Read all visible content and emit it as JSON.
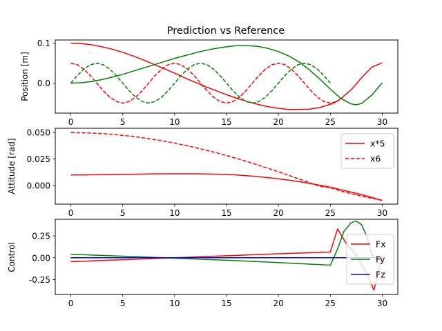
{
  "chart_data": [
    {
      "type": "line",
      "title": "Prediction vs Reference",
      "ylabel": "Position [m]",
      "xlabel": "",
      "xlim": [
        -1.5,
        31.5
      ],
      "ylim": [
        -0.075,
        0.108
      ],
      "xticks": [
        "0",
        "5",
        "10",
        "15",
        "20",
        "25",
        "30"
      ],
      "yticks": [
        "0.1",
        "0.0"
      ],
      "legend": null,
      "series": [
        {
          "color": "#ff0000",
          "dash": "solid",
          "x": [
            0,
            1,
            2,
            3,
            4,
            5,
            6,
            7,
            8,
            9,
            10,
            11,
            12,
            13,
            14,
            15,
            16,
            17,
            18,
            19,
            20,
            21,
            22,
            23,
            24,
            25,
            25.5,
            26,
            27,
            28,
            29,
            30
          ],
          "values": [
            0.1,
            0.099,
            0.096,
            0.091,
            0.085,
            0.077,
            0.068,
            0.058,
            0.047,
            0.036,
            0.025,
            0.013,
            0.002,
            -0.009,
            -0.019,
            -0.029,
            -0.038,
            -0.046,
            -0.053,
            -0.059,
            -0.063,
            -0.066,
            -0.066,
            -0.065,
            -0.061,
            -0.053,
            -0.048,
            -0.039,
            -0.017,
            0.013,
            0.04,
            0.051
          ]
        },
        {
          "color": "#ff0000",
          "dash": "dashed",
          "x": [
            0,
            0.625,
            1.25,
            1.875,
            2.5,
            3.125,
            3.75,
            4.375,
            5,
            5.625,
            6.25,
            6.875,
            7.5,
            8.125,
            8.75,
            9.375,
            10,
            10.625,
            11.25,
            11.875,
            12.5,
            13.125,
            13.75,
            14.375,
            15,
            15.625,
            16.25,
            16.875,
            17.5,
            18.125,
            18.75,
            19.375,
            20,
            20.625,
            21.25,
            21.875,
            22.5,
            23.125,
            23.75,
            24.375,
            25,
            25.625,
            26.25
          ],
          "values": [
            0.05,
            0.046,
            0.035,
            0.019,
            0.0,
            -0.019,
            -0.035,
            -0.046,
            -0.05,
            -0.046,
            -0.035,
            -0.019,
            0.0,
            0.019,
            0.035,
            0.046,
            0.05,
            0.046,
            0.035,
            0.019,
            0.0,
            -0.019,
            -0.035,
            -0.046,
            -0.05,
            -0.046,
            -0.035,
            -0.019,
            0.0,
            0.019,
            0.035,
            0.046,
            0.05,
            0.046,
            0.035,
            0.019,
            0.0,
            -0.019,
            -0.035,
            -0.046,
            -0.05,
            -0.046,
            -0.035
          ]
        },
        {
          "color": "#008000",
          "dash": "solid",
          "x": [
            0,
            1,
            2,
            3,
            4,
            5,
            6,
            7,
            8,
            9,
            10,
            11,
            12,
            13,
            14,
            15,
            16,
            16.5,
            17,
            18,
            19,
            20,
            21,
            22,
            23,
            24,
            25,
            26,
            27,
            27.5,
            28,
            29,
            30
          ],
          "values": [
            0.0,
            0.001,
            0.004,
            0.009,
            0.015,
            0.022,
            0.03,
            0.038,
            0.046,
            0.054,
            0.062,
            0.069,
            0.076,
            0.082,
            0.087,
            0.091,
            0.094,
            0.094,
            0.094,
            0.092,
            0.087,
            0.079,
            0.068,
            0.053,
            0.033,
            0.01,
            -0.015,
            -0.038,
            -0.052,
            -0.054,
            -0.051,
            -0.03,
            0.001
          ]
        },
        {
          "color": "#008000",
          "dash": "dashed",
          "x": [
            0,
            0.625,
            1.25,
            1.875,
            2.5,
            3.125,
            3.75,
            4.375,
            5,
            5.625,
            6.25,
            6.875,
            7.5,
            8.125,
            8.75,
            9.375,
            10,
            10.625,
            11.25,
            11.875,
            12.5,
            13.125,
            13.75,
            14.375,
            15,
            15.625,
            16.25,
            16.875,
            17.5,
            18.125,
            18.75,
            19.375,
            20,
            20.625,
            21.25,
            21.875,
            22.5,
            23.125,
            23.75,
            24.375,
            25
          ],
          "values": [
            0.0,
            0.019,
            0.035,
            0.046,
            0.05,
            0.046,
            0.035,
            0.019,
            0.0,
            -0.019,
            -0.035,
            -0.046,
            -0.05,
            -0.046,
            -0.035,
            -0.019,
            0.0,
            0.019,
            0.035,
            0.046,
            0.05,
            0.046,
            0.035,
            0.019,
            0.0,
            -0.019,
            -0.035,
            -0.046,
            -0.05,
            -0.046,
            -0.035,
            -0.019,
            0.0,
            0.019,
            0.035,
            0.046,
            0.05,
            0.046,
            0.035,
            0.019,
            0.0
          ]
        }
      ]
    },
    {
      "type": "line",
      "title": "",
      "ylabel": "Attitude [rad]",
      "xlabel": "",
      "xlim": [
        -1.5,
        31.5
      ],
      "ylim": [
        -0.0175,
        0.054
      ],
      "xticks": [
        "0",
        "5",
        "10",
        "15",
        "20",
        "25",
        "30"
      ],
      "yticks": [
        "0.050",
        "0.025",
        "0.000"
      ],
      "legend": "top-right",
      "series": [
        {
          "name": "x*5",
          "color": "#ff0000",
          "dash": "solid",
          "x": [
            0,
            2,
            4,
            6,
            8,
            10,
            12,
            14,
            16,
            18,
            20,
            22,
            24,
            25,
            26,
            28,
            30
          ],
          "values": [
            0.01,
            0.0101,
            0.0104,
            0.0107,
            0.011,
            0.0111,
            0.0111,
            0.0108,
            0.01,
            0.0085,
            0.0064,
            0.0037,
            0.0003,
            -0.0016,
            -0.0038,
            -0.0085,
            -0.014
          ]
        },
        {
          "name": "x6",
          "color": "#ff0000",
          "dash": "dashed",
          "x": [
            0,
            2,
            4,
            6,
            8,
            10,
            12,
            14,
            16,
            18,
            20,
            22,
            24,
            25,
            26,
            28,
            30
          ],
          "values": [
            0.05,
            0.0495,
            0.0483,
            0.0463,
            0.0435,
            0.04,
            0.0358,
            0.031,
            0.0255,
            0.0195,
            0.013,
            0.0062,
            -0.0008,
            -0.002,
            -0.0052,
            -0.01,
            -0.014
          ]
        }
      ]
    },
    {
      "type": "line",
      "title": "",
      "ylabel": "Control",
      "xlabel": "",
      "xlim": [
        -1.5,
        31.5
      ],
      "ylim": [
        -0.42,
        0.44
      ],
      "xticks": [
        "0",
        "5",
        "10",
        "15",
        "20",
        "25",
        "30"
      ],
      "yticks": [
        "0.25",
        "0.00",
        "-0.25"
      ],
      "legend": "center-right",
      "series": [
        {
          "name": "Fx",
          "color": "#ff0000",
          "dash": "solid",
          "x": [
            0,
            5,
            10,
            15,
            20,
            25,
            25.7,
            26.5,
            27.5,
            28.5,
            29.2,
            30
          ],
          "values": [
            -0.045,
            -0.023,
            0.0,
            0.023,
            0.045,
            0.065,
            0.33,
            0.17,
            0.03,
            -0.18,
            -0.37,
            0.02
          ]
        },
        {
          "name": "Fy",
          "color": "#008000",
          "dash": "solid",
          "x": [
            0,
            5,
            10,
            15,
            20,
            25,
            25.7,
            26.3,
            27,
            27.5,
            28,
            28.5,
            29,
            29.5,
            30
          ],
          "values": [
            0.04,
            0.018,
            -0.005,
            -0.028,
            -0.055,
            -0.085,
            0.1,
            0.3,
            0.4,
            0.42,
            0.38,
            0.25,
            0.03,
            -0.02,
            -0.02
          ]
        },
        {
          "name": "Fz",
          "color": "#0000ff",
          "dash": "solid",
          "x": [
            0,
            30
          ],
          "values": [
            0.0,
            0.0
          ]
        }
      ]
    }
  ]
}
